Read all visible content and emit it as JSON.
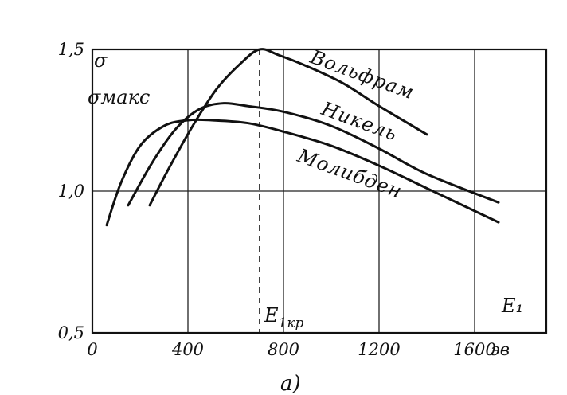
{
  "chart_data": {
    "type": "line",
    "caption": "а)",
    "xlabel": "E₁",
    "xunit": "эв",
    "ylabel": "σ",
    "ylabel2": "σмакс",
    "xlim": [
      0,
      1900
    ],
    "ylim": [
      0.5,
      1.5
    ],
    "x_ticks": [
      0,
      400,
      800,
      1200,
      1600
    ],
    "y_ticks": [
      0.5,
      1.0,
      1.5
    ],
    "x_tick_labels": [
      "0",
      "400",
      "800",
      "1200",
      "1600"
    ],
    "y_tick_labels": [
      "0,5",
      "1,0",
      "1,5"
    ],
    "grid": true,
    "marker": {
      "label": "E",
      "sub": "1кр",
      "x": 700,
      "y": 1.5
    },
    "series": [
      {
        "name": "Вольфрам",
        "x": [
          240,
          320,
          420,
          520,
          620,
          700,
          780,
          900,
          1050,
          1200,
          1400
        ],
        "y": [
          0.95,
          1.08,
          1.23,
          1.36,
          1.45,
          1.5,
          1.48,
          1.44,
          1.38,
          1.3,
          1.2
        ]
      },
      {
        "name": "Никель",
        "x": [
          150,
          250,
          350,
          450,
          550,
          650,
          800,
          1000,
          1200,
          1400,
          1700
        ],
        "y": [
          0.95,
          1.1,
          1.22,
          1.29,
          1.31,
          1.3,
          1.28,
          1.23,
          1.15,
          1.06,
          0.96
        ]
      },
      {
        "name": "Молибден",
        "x": [
          60,
          120,
          200,
          300,
          400,
          500,
          650,
          800,
          1000,
          1200,
          1400,
          1700
        ],
        "y": [
          0.88,
          1.03,
          1.16,
          1.23,
          1.25,
          1.25,
          1.24,
          1.21,
          1.16,
          1.09,
          1.01,
          0.89
        ]
      }
    ]
  }
}
